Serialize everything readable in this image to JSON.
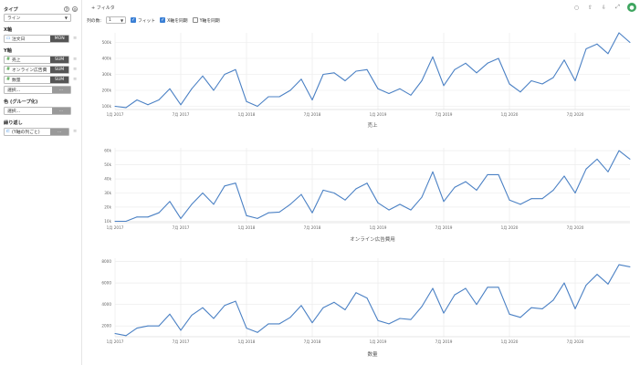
{
  "sidebar": {
    "type_title": "タイプ",
    "chart_type": "ライン",
    "x_title": "X軸",
    "x_field": {
      "label": "注文日",
      "tag": "MON"
    },
    "y_title": "Y軸",
    "y_fields": [
      {
        "label": "売上",
        "tag": "SUM"
      },
      {
        "label": "オンライン広告費",
        "tag": "SUM"
      },
      {
        "label": "数量",
        "tag": "SUM"
      }
    ],
    "select_placeholder": "選択...",
    "color_title": "色 (グループ化)",
    "repeat_title": "繰り返し",
    "repeat_field": {
      "label": "(Y軸の列ごと)"
    },
    "more_tag": "..."
  },
  "topbar": {
    "filter_label": "フィルタ"
  },
  "options": {
    "columns_label": "列の数:",
    "columns_value": "1",
    "fit_label": "フィット",
    "x_sync_label": "X軸を同期",
    "y_sync_label": "Y軸を同期"
  },
  "colors": {
    "line": "#4a80c4",
    "grid": "#e9e9e9",
    "accent_green": "#3ea55f"
  },
  "chart_data": [
    {
      "type": "line",
      "xlabel": "売上",
      "ylabel": "",
      "ylim": [
        80000,
        560000
      ],
      "yticks": [
        100000,
        200000,
        300000,
        400000,
        500000
      ],
      "ytick_labels": [
        "100k",
        "200k",
        "300k",
        "400k",
        "500k"
      ],
      "xtick_labels": [
        "1月 2017",
        "7月 2017",
        "1月 2018",
        "7月 2018",
        "1月 2019",
        "7月 2019",
        "1月 2020",
        "7月 2020"
      ],
      "xtick_index": [
        0,
        6,
        12,
        18,
        24,
        30,
        36,
        42
      ],
      "values": [
        100000,
        92000,
        140000,
        110000,
        140000,
        210000,
        110000,
        210000,
        290000,
        200000,
        300000,
        330000,
        130000,
        100000,
        160000,
        160000,
        200000,
        270000,
        140000,
        300000,
        310000,
        260000,
        320000,
        330000,
        210000,
        180000,
        210000,
        170000,
        260000,
        410000,
        230000,
        330000,
        370000,
        310000,
        370000,
        400000,
        240000,
        190000,
        260000,
        240000,
        280000,
        390000,
        260000,
        460000,
        490000,
        430000,
        560000,
        500000
      ]
    },
    {
      "type": "line",
      "xlabel": "オンライン広告費用",
      "ylabel": "",
      "ylim": [
        9000,
        62000
      ],
      "yticks": [
        10000,
        20000,
        30000,
        40000,
        50000,
        60000
      ],
      "ytick_labels": [
        "10k",
        "20k",
        "30k",
        "40k",
        "50k",
        "60k"
      ],
      "xtick_labels": [
        "1月 2017",
        "7月 2017",
        "1月 2018",
        "7月 2018",
        "1月 2019",
        "7月 2019",
        "1月 2020",
        "7月 2020"
      ],
      "xtick_index": [
        0,
        6,
        12,
        18,
        24,
        30,
        36,
        42
      ],
      "values": [
        10000,
        10000,
        13000,
        13000,
        16000,
        24000,
        12000,
        22000,
        30000,
        22000,
        35000,
        37000,
        14000,
        12000,
        16000,
        16500,
        22000,
        29000,
        16000,
        32000,
        30000,
        25000,
        33000,
        37000,
        23000,
        18000,
        22000,
        18000,
        27000,
        45000,
        24000,
        34000,
        38000,
        32000,
        43000,
        43000,
        25000,
        22000,
        26000,
        26000,
        32000,
        42000,
        30000,
        47000,
        54000,
        45000,
        60000,
        54000
      ]
    },
    {
      "type": "line",
      "xlabel": "数量",
      "ylabel": "",
      "ylim": [
        1000,
        8300
      ],
      "yticks": [
        2000,
        4000,
        6000,
        8000
      ],
      "ytick_labels": [
        "2000",
        "4000",
        "6000",
        "8000"
      ],
      "xtick_labels": [
        "1月 2017",
        "7月 2017",
        "1月 2018",
        "7月 2018",
        "1月 2019",
        "7月 2019",
        "1月 2020",
        "7月 2020"
      ],
      "xtick_index": [
        0,
        6,
        12,
        18,
        24,
        30,
        36,
        42
      ],
      "values": [
        1300,
        1100,
        1800,
        2000,
        2000,
        3100,
        1600,
        3000,
        3700,
        2700,
        3900,
        4300,
        1800,
        1400,
        2200,
        2200,
        2800,
        3900,
        2300,
        3700,
        4200,
        3500,
        5100,
        4600,
        2500,
        2200,
        2700,
        2600,
        3800,
        5500,
        3200,
        4900,
        5500,
        4000,
        5600,
        5600,
        3100,
        2800,
        3700,
        3600,
        4400,
        6000,
        3600,
        5800,
        6800,
        5900,
        7700,
        7500
      ]
    }
  ]
}
